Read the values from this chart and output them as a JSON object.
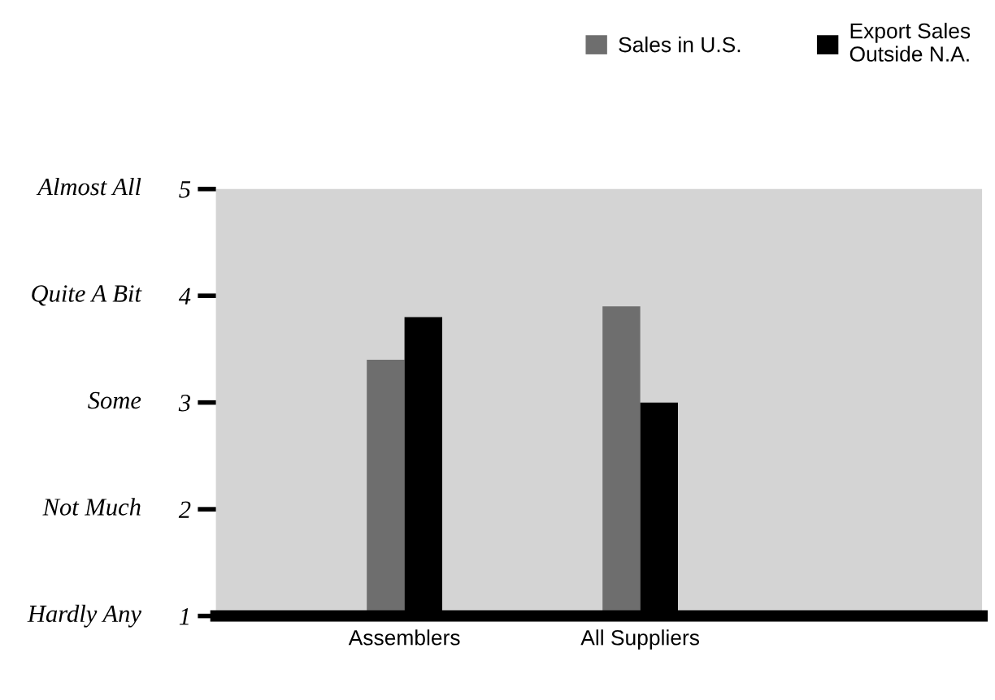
{
  "chart_data": {
    "type": "bar",
    "categories": [
      "Assemblers",
      "All Suppliers"
    ],
    "series": [
      {
        "name": "Sales in U.S.",
        "color": "#6e6e6e",
        "values": [
          3.4,
          3.9
        ]
      },
      {
        "name": "Export Sales\nOutside N.A.",
        "color": "#000000",
        "values": [
          3.8,
          3.0
        ]
      }
    ],
    "ylim": [
      1,
      5
    ],
    "yticks": [
      1,
      2,
      3,
      4,
      5
    ],
    "annotations": [
      "Hardly Any",
      "Not Much",
      "Some",
      "Quite A Bit",
      "Almost All"
    ],
    "grid": false,
    "legend": "top right"
  }
}
